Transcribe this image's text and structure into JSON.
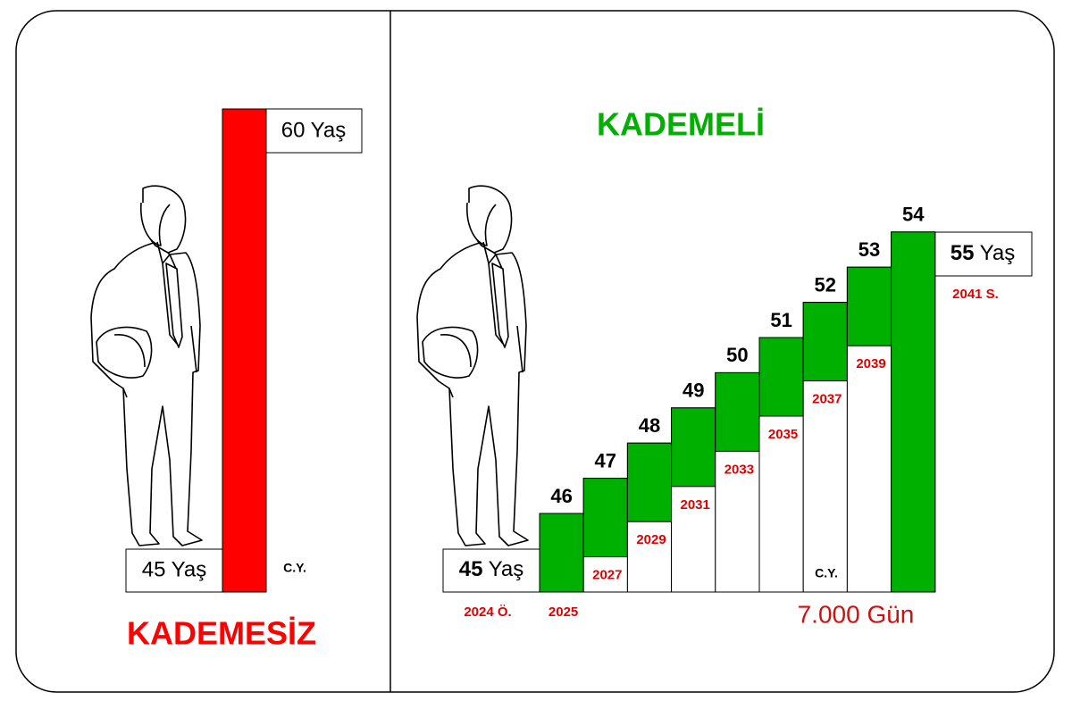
{
  "left": {
    "ceiling": "60 Yaş",
    "floor": "45 Yaş",
    "note": "C.Y.",
    "title": "KADEMESİZ"
  },
  "right": {
    "title": "KADEMELİ",
    "start": {
      "age": "45",
      "unit": "Yaş",
      "date": "2024 Ö."
    },
    "steps": [
      {
        "age": 46,
        "year": "2025"
      },
      {
        "age": 47,
        "year": "2027"
      },
      {
        "age": 48,
        "year": "2029"
      },
      {
        "age": 49,
        "year": "2031"
      },
      {
        "age": 50,
        "year": "2033"
      },
      {
        "age": 51,
        "year": "2035"
      },
      {
        "age": 52,
        "year": "2037"
      },
      {
        "age": 53,
        "year": "2039"
      },
      {
        "age": 54
      }
    ],
    "target": {
      "age": "55",
      "unit": "Yaş",
      "date": "2041 S."
    },
    "note": "C.Y.",
    "total": "7.000 Gün"
  }
}
